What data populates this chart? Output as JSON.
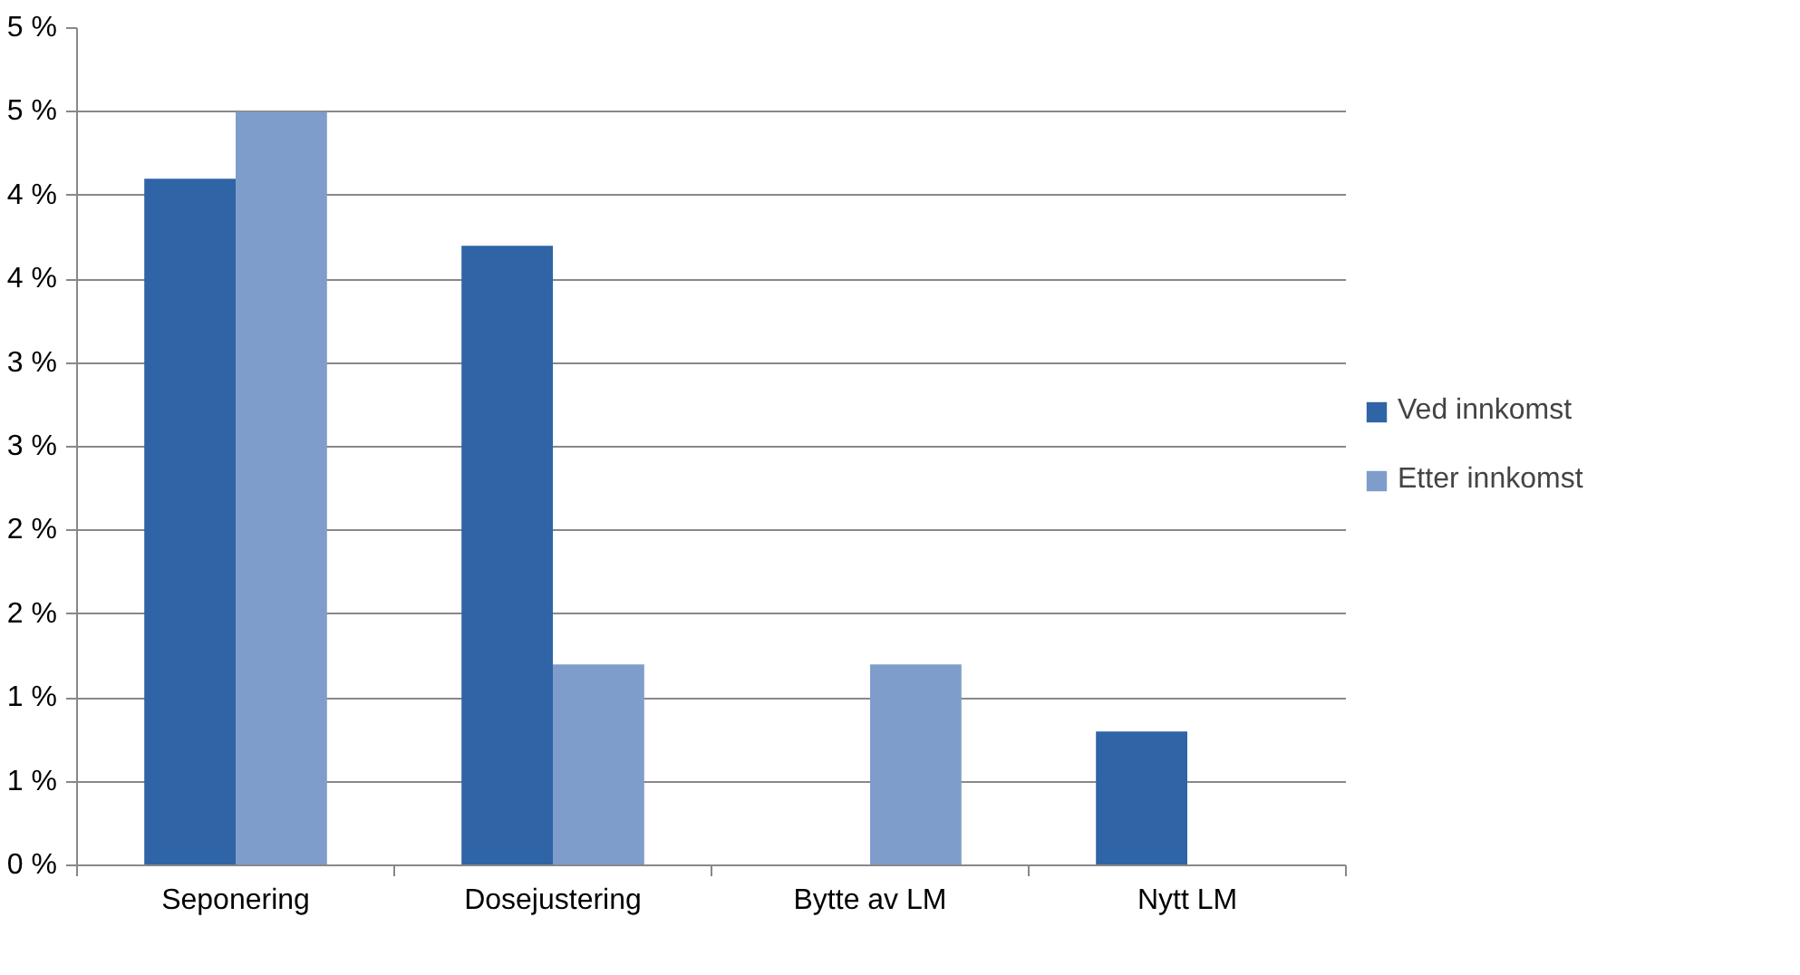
{
  "chart_data": {
    "type": "bar",
    "categories": [
      "Seponering",
      "Dosejustering",
      "Bytte av LM",
      "Nytt LM"
    ],
    "series": [
      {
        "name": "Ved innkomst",
        "color": "#2f64a6",
        "values": [
          4.1,
          3.7,
          null,
          0.8
        ]
      },
      {
        "name": "Etter innkomst",
        "color": "#7f9dcb",
        "values": [
          4.5,
          1.2,
          1.2,
          null
        ]
      }
    ],
    "ylim": [
      0,
      5
    ],
    "yticks": [
      {
        "value": 0,
        "label": "0 %"
      },
      {
        "value": 0.5,
        "label": "1 %"
      },
      {
        "value": 1,
        "label": "1 %"
      },
      {
        "value": 1.5,
        "label": "2 %"
      },
      {
        "value": 2,
        "label": "2 %"
      },
      {
        "value": 2.5,
        "label": "3 %"
      },
      {
        "value": 3,
        "label": "3 %"
      },
      {
        "value": 3.5,
        "label": "4 %"
      },
      {
        "value": 4,
        "label": "4 %"
      },
      {
        "value": 4.5,
        "label": "5 %"
      },
      {
        "value": 5,
        "label": "5 %"
      }
    ],
    "grid": "y",
    "legend": "right"
  }
}
